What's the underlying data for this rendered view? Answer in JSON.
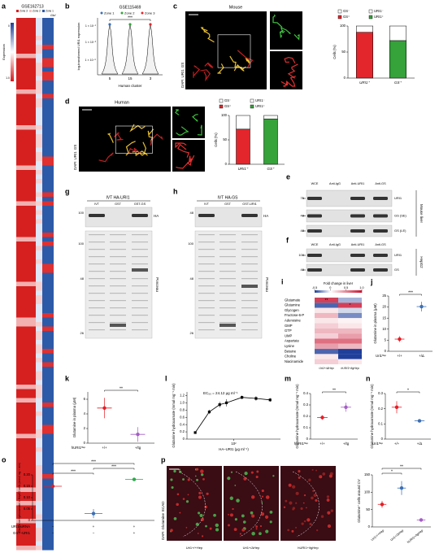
{
  "figures": [
    {
      "panel": "a",
      "title": "GSE162713",
      "zones": [
        "Zone 3",
        "Zone 2",
        "Zone 1"
      ],
      "gene": "Glul",
      "colorbar_label": "Expression",
      "colorbar_ticks": [
        "0",
        "1.0"
      ]
    },
    {
      "panel": "b",
      "title": "GSE115469",
      "legend": [
        "Zone 1",
        "Zone 2",
        "Zone 3"
      ],
      "y_label": "log-transformed URI1 expression",
      "yticks": [
        "1 × 10⁻¹",
        "1 × 10⁻³",
        "1 × 10⁻⁶"
      ],
      "clusters": [
        "5",
        "15",
        "3"
      ],
      "x_label": "Human cluster",
      "significance": "***"
    },
    {
      "panel": "c",
      "title": "Mouse",
      "stains": [
        "DAPI",
        "URI1",
        "GS"
      ]
    },
    {
      "panel": "d",
      "title": "Human",
      "stains": [
        "DAPI",
        "URI1",
        "GS"
      ]
    },
    {
      "panel": "e",
      "lanes": [
        "WCE",
        "Anti-IgG",
        "Anti-URI1",
        "Anti-GS"
      ],
      "markers": [
        75,
        48,
        48
      ],
      "bands": [
        "URI1",
        "GS (SE)",
        "GS (LE)"
      ],
      "sample": "Mouse liver"
    },
    {
      "panel": "f",
      "lanes": [
        "WCE",
        "Anti-IgG",
        "Anti-URI1",
        "Anti-GS"
      ],
      "markers": [
        100,
        48
      ],
      "bands": [
        "URI1",
        "GS"
      ],
      "sample": "HepG2"
    },
    {
      "panel": "g",
      "title": "IVT HA-URI1",
      "lanes": [
        "IVT",
        "GST",
        "GST-GS"
      ],
      "blot_markers": [
        100
      ],
      "blot": "HA",
      "gel_markers": [
        100,
        48,
        26
      ],
      "gel": "Ponceau"
    },
    {
      "panel": "h",
      "title": "IVT HA-GS",
      "lanes": [
        "IVT",
        "GST",
        "GST-URI1"
      ],
      "blot_markers": [
        48
      ],
      "blot": "HA",
      "gel_markers": [
        100,
        48,
        26
      ],
      "gel": "Ponceau"
    },
    {
      "panel": "i"
    },
    {
      "panel": "j"
    },
    {
      "panel": "k"
    },
    {
      "panel": "l"
    },
    {
      "panel": "m"
    },
    {
      "panel": "n"
    },
    {
      "panel": "o"
    },
    {
      "panel": "p",
      "stains": [
        "DAPI",
        "Glutamine",
        "ECAD"
      ],
      "images": [
        "Uri1+/+Hep",
        "Uri1+/ΔHep",
        "hURI1+/tgHep"
      ]
    }
  ],
  "chart_data": [
    {
      "type": "stacked",
      "y_label": "Cells (%)",
      "categories": [
        "URI1⁺",
        "GS⁺"
      ],
      "ylim": [
        0,
        100
      ],
      "yticks": [
        0,
        50,
        100
      ],
      "series": [
        {
          "name": "GS⁺",
          "color": "#e3262c",
          "values": [
            88,
            null
          ]
        },
        {
          "name": "GS⁻",
          "color": "#ffffff",
          "values": [
            12,
            null
          ]
        },
        {
          "name": "URI1⁺",
          "color": "#35a23a",
          "values": [
            null,
            72
          ]
        },
        {
          "name": "URI1⁻",
          "color": "#ffffff",
          "values": [
            null,
            28
          ]
        }
      ]
    },
    {
      "type": "stacked",
      "y_label": "Cells (%)",
      "categories": [
        "URI1⁺",
        "GS⁺"
      ],
      "ylim": [
        0,
        100
      ],
      "yticks": [
        0,
        50,
        100
      ],
      "series": [
        {
          "name": "GS⁺",
          "color": "#e3262c",
          "values": [
            72,
            null
          ]
        },
        {
          "name": "GS⁻",
          "color": "#ffffff",
          "values": [
            28,
            null
          ]
        },
        {
          "name": "URI1⁺",
          "color": "#35a23a",
          "values": [
            null,
            93
          ]
        },
        {
          "name": "URI1⁻",
          "color": "#ffffff",
          "values": [
            null,
            7
          ]
        }
      ]
    },
    {
      "type": "heatmap",
      "title": "Fold change in liver",
      "clim": [
        -0.5,
        1
      ],
      "cticks": [
        -0.5,
        0,
        0.5,
        {
          "value": 1,
          "label": "1.0"
        }
      ],
      "rows": [
        "Glutamate",
        "Glutamine",
        "Glycogen",
        "Fructose-6-P",
        "Adenosine",
        "GMP",
        "GTP",
        "UMP",
        "Aspartate",
        "Lysine",
        "Betaine",
        "Choline",
        "Niacinamide"
      ],
      "columns": [
        "Uri1+/ΔHep",
        "hURI1+/tgHep"
      ],
      "values": [
        [
          0.8,
          -0.2
        ],
        [
          -0.4,
          0.8
        ],
        [
          0.1,
          -0.1
        ],
        [
          0.3,
          -0.3
        ],
        [
          0.1,
          0.05
        ],
        [
          0.2,
          0.1
        ],
        [
          0.3,
          0.3
        ],
        [
          0.2,
          0.4
        ],
        [
          0.6,
          0.6
        ],
        [
          0.4,
          0.3
        ],
        [
          -0.4,
          -0.5
        ],
        [
          0.1,
          -0.5
        ],
        [
          0.2,
          0.1
        ]
      ],
      "cell_labels": [
        [
          "**",
          null
        ],
        [
          null,
          "*"
        ]
      ]
    },
    {
      "type": "dot",
      "y_label": "Glutamine in plasma (μM)",
      "categories": [
        "+/+",
        "+/Δ"
      ],
      "group_label": "Uri1ᴴᵉᵖ",
      "values": [
        5.5,
        20.2
      ],
      "errors": [
        1.3,
        2.2
      ],
      "colors": [
        "#e41e26",
        "#3b6fb6"
      ],
      "ylim": [
        0,
        25
      ],
      "yticks": [
        0,
        5,
        10,
        15,
        20,
        25
      ],
      "significance": [
        "***"
      ]
    },
    {
      "type": "dot",
      "y_label": "Glutamine in plasma (μM)",
      "categories": [
        "+/+",
        "+/tg"
      ],
      "group_label": "hURI1ᴴᵉᵖ",
      "values": [
        4.8,
        1.2
      ],
      "errors": [
        1.4,
        1.0
      ],
      "colors": [
        "#e41e26",
        "#a45ec4"
      ],
      "ylim": [
        0,
        7
      ],
      "yticks": [
        0,
        2,
        4,
        6
      ],
      "significance": [
        "**"
      ]
    },
    {
      "type": "line",
      "annotation": "EC₅₀ = 24.12 μg ml⁻¹",
      "y_label": "Glutamine hydroxamate (mmol mg⁻¹ min)",
      "x_label": "HA–URI1 (μg ml⁻¹)",
      "log_x": true,
      "x": [
        15,
        30,
        50,
        70,
        150,
        300,
        600
      ],
      "values": [
        0.18,
        0.75,
        0.95,
        1.0,
        1.15,
        1.12,
        1.08
      ],
      "errors": [
        0.02,
        0.06,
        0.08,
        0.1,
        0.05,
        0.06,
        0.05
      ],
      "color": "#000000",
      "xlim": [
        10,
        1000
      ],
      "xticks": [
        {
          "value": 100,
          "label": "10²"
        }
      ],
      "ylim": [
        0,
        1.3
      ],
      "yticks": [
        0,
        0.2,
        0.4,
        0.6,
        0.8,
        {
          "value": 1,
          "label": "1.0"
        },
        1.2
      ]
    },
    {
      "type": "dot",
      "y_label": "Glutamine hydroxamate (mmol mg⁻¹ min)",
      "categories": [
        "+/+",
        "+/tg"
      ],
      "group_label": "hURI1ᴴᵉᵖ",
      "values": [
        0.19,
        0.28
      ],
      "errors": [
        0.02,
        0.04
      ],
      "colors": [
        "#e41e26",
        "#a45ec4"
      ],
      "ylim": [
        0,
        0.4
      ],
      "yticks": [
        0,
        0.1,
        0.2,
        0.3,
        0.4
      ],
      "significance": [
        "**"
      ]
    },
    {
      "type": "dot",
      "y_label": "Glutamine hydroxamate (mmol mg⁻¹ min)",
      "categories": [
        "+/+",
        "+/Δ"
      ],
      "group_label": "Uri1ᴴᵉᵖ",
      "values": [
        0.21,
        0.12
      ],
      "errors": [
        0.04,
        0.01
      ],
      "colors": [
        "#e41e26",
        "#3b6fb6"
      ],
      "ylim": [
        0,
        0.3
      ],
      "yticks": [
        0,
        0.1,
        0.2,
        0.3
      ],
      "significance": [
        "*"
      ]
    },
    {
      "type": "dot",
      "y_label": "Glutamine hydroxamate in HepG2 cells (mmol mg⁻¹ min)",
      "values": [
        0.15,
        0.03,
        0.18
      ],
      "errors": [
        0.003,
        0.02,
        0.004
      ],
      "colors": [
        "#e41e26",
        "#3b6fb6",
        "#2fa84f"
      ],
      "conditions": [
        {
          "name": "URI1 siRNA",
          "marks": [
            "−",
            "+",
            "+"
          ]
        },
        {
          "name": "GST–URI1",
          "marks": [
            "−",
            "−",
            "+"
          ]
        }
      ],
      "ylim": [
        0,
        0.2
      ],
      "yticks": [
        0,
        0.05,
        {
          "value": 0.1,
          "label": "0.10"
        },
        0.15,
        {
          "value": 0.2,
          "label": "0.20"
        }
      ],
      "significance": [
        "***",
        "***",
        "***"
      ]
    },
    {
      "type": "dot",
      "y_label": "Glutamine⁺ cells around CV",
      "categories": [
        "Uri1+/+Hep",
        "Uri1+/ΔHep",
        "hURI1+/tgHep"
      ],
      "values": [
        65,
        112,
        20
      ],
      "errors": [
        10,
        20,
        5
      ],
      "colors": [
        "#e41e26",
        "#3b6fb6",
        "#a45ec4"
      ],
      "ylim": [
        0,
        150
      ],
      "yticks": [
        0,
        50,
        100,
        150
      ],
      "significance": [
        "*",
        "**"
      ]
    }
  ]
}
